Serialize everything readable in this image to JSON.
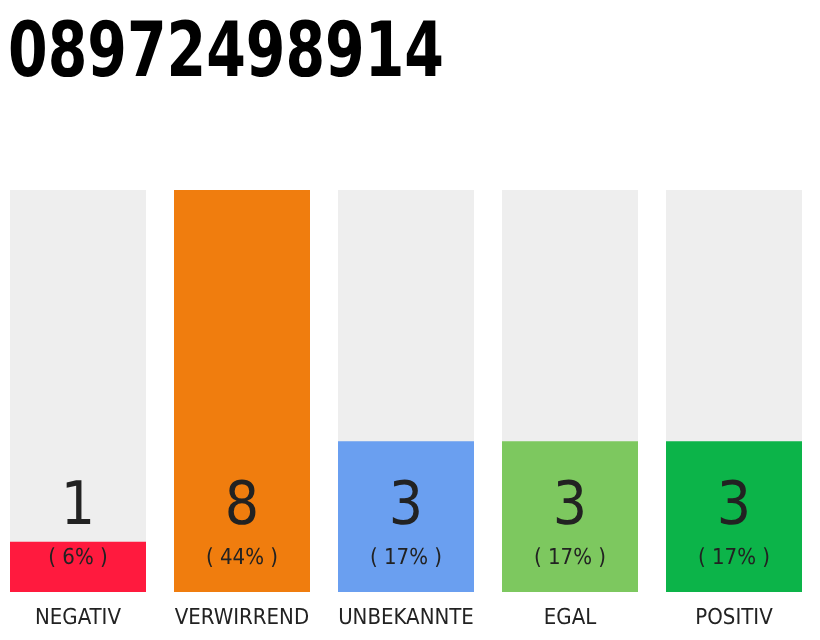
{
  "chart_data": {
    "type": "bar",
    "title": "08972498914",
    "categories": [
      "NEGATIV",
      "VERWIRREND",
      "UNBEKANNTE",
      "EGAL",
      "POSITIV"
    ],
    "values": [
      1,
      8,
      3,
      3,
      3
    ],
    "colors": [
      "#ff1a3e",
      "#f07d0e",
      "#6a9ff0",
      "#7dc85f",
      "#0cb449"
    ],
    "ylim": [
      0,
      8
    ],
    "tick_labels": "x",
    "data_labels": true,
    "annotations": [
      "( 6% )",
      "( 44% )",
      "( 17% )",
      "( 17% )",
      "( 17% )"
    ]
  }
}
